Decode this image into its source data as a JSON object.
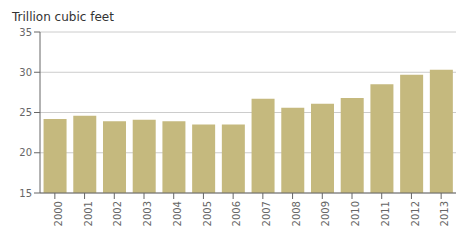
{
  "chart_data": {
    "type": "bar",
    "ylabel": "Trillion cubic feet",
    "categories": [
      "2000",
      "2001",
      "2002",
      "2003",
      "2004",
      "2005",
      "2006",
      "2007",
      "2008",
      "2009",
      "2010",
      "2011",
      "2012",
      "2013"
    ],
    "values": [
      24.2,
      24.6,
      23.9,
      24.1,
      23.9,
      23.5,
      23.5,
      26.7,
      25.6,
      26.1,
      26.8,
      28.5,
      29.7,
      30.3
    ],
    "color": "#c5b97e",
    "ylim": [
      15,
      35
    ],
    "yticks": [
      15,
      20,
      25,
      30,
      35
    ],
    "grid": true
  }
}
